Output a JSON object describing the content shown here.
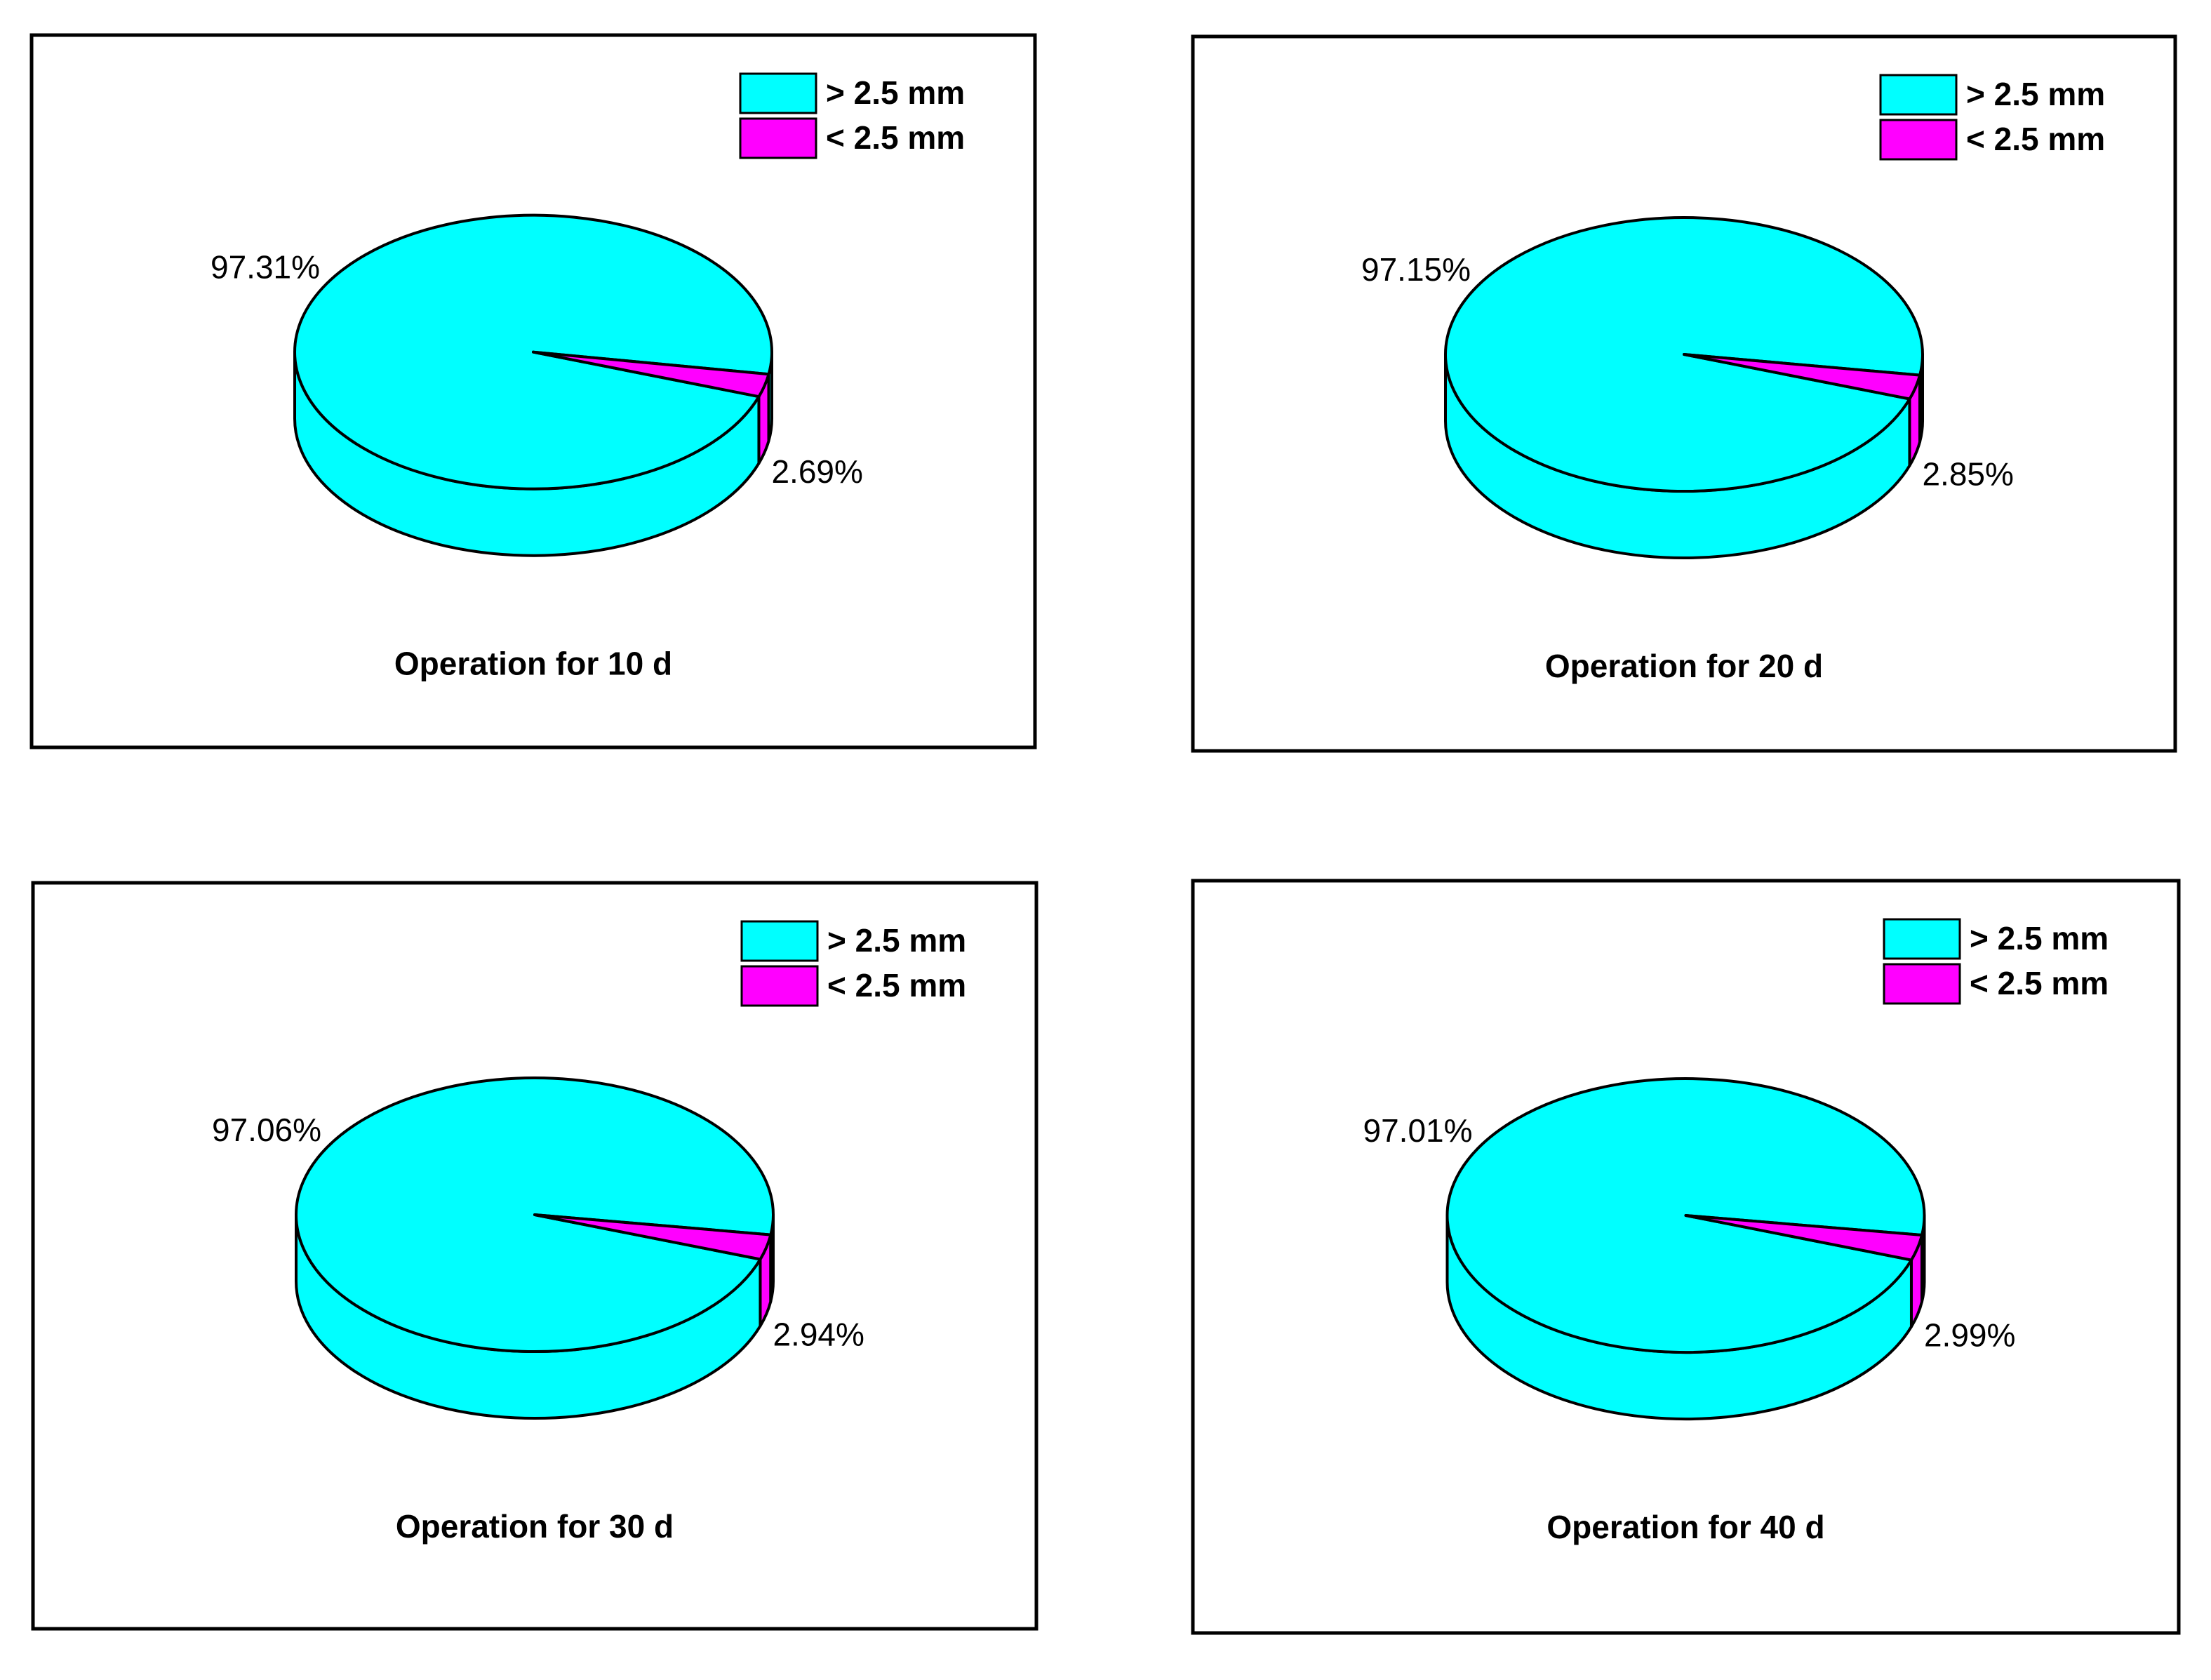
{
  "colors": {
    "large": "#00FFFF",
    "small": "#FF00FF",
    "outline": "#000000"
  },
  "chart_data": [
    {
      "type": "pie",
      "title": "Operation for 10 d",
      "categories": [
        "> 2.5 mm",
        "< 2.5 mm"
      ],
      "values": [
        97.31,
        2.69
      ],
      "labels": [
        "97.31%",
        "2.69%"
      ],
      "legend": "top-right",
      "style": "3d"
    },
    {
      "type": "pie",
      "title": "Operation for 20 d",
      "categories": [
        "> 2.5 mm",
        "< 2.5 mm"
      ],
      "values": [
        97.15,
        2.85
      ],
      "labels": [
        "97.15%",
        "2.85%"
      ],
      "legend": "top-right",
      "style": "3d"
    },
    {
      "type": "pie",
      "title": "Operation for 30 d",
      "categories": [
        "> 2.5 mm",
        "< 2.5 mm"
      ],
      "values": [
        97.06,
        2.94
      ],
      "labels": [
        "97.06%",
        "2.94%"
      ],
      "legend": "top-right",
      "style": "3d"
    },
    {
      "type": "pie",
      "title": "Operation for 40 d",
      "categories": [
        "> 2.5 mm",
        "< 2.5 mm"
      ],
      "values": [
        97.01,
        2.99
      ],
      "labels": [
        "97.01%",
        "2.99%"
      ],
      "legend": "top-right",
      "style": "3d"
    }
  ]
}
